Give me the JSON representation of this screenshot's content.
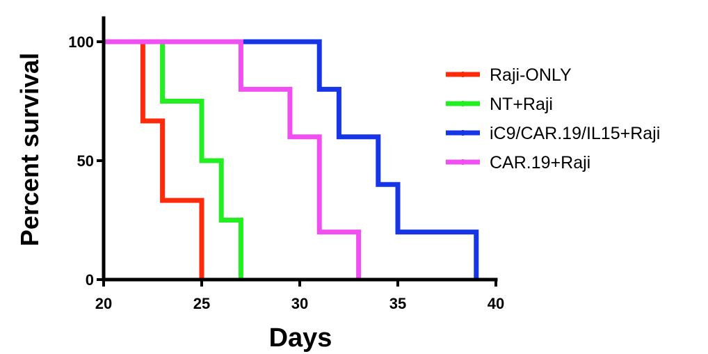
{
  "chart_data": {
    "type": "line",
    "step": true,
    "xlabel": "Days",
    "ylabel": "Percent survival",
    "xlim": [
      20,
      40
    ],
    "ylim": [
      0,
      100
    ],
    "x_ticks": [
      20,
      25,
      30,
      35,
      40
    ],
    "y_ticks": [
      0,
      50,
      100
    ],
    "grid": false,
    "legend_position": "right",
    "series": [
      {
        "name": "Raji-ONLY",
        "color": "#ff2a0a",
        "x": [
          20,
          22,
          23,
          25
        ],
        "y": [
          100,
          66.7,
          33.3,
          0
        ]
      },
      {
        "name": "NT+Raji",
        "color": "#22ee22",
        "x": [
          20,
          23,
          25,
          26,
          27
        ],
        "y": [
          100,
          75,
          50,
          25,
          0
        ]
      },
      {
        "name": "iC9/CAR.19/IL15+Raji",
        "color": "#1535e6",
        "x": [
          20,
          31,
          32,
          34,
          35,
          39
        ],
        "y": [
          100,
          80,
          60,
          40,
          20,
          0
        ]
      },
      {
        "name": "CAR.19+Raji",
        "color": "#f050f0",
        "x": [
          20,
          27,
          29.5,
          31,
          33
        ],
        "y": [
          100,
          80,
          60,
          20,
          0
        ]
      }
    ]
  }
}
